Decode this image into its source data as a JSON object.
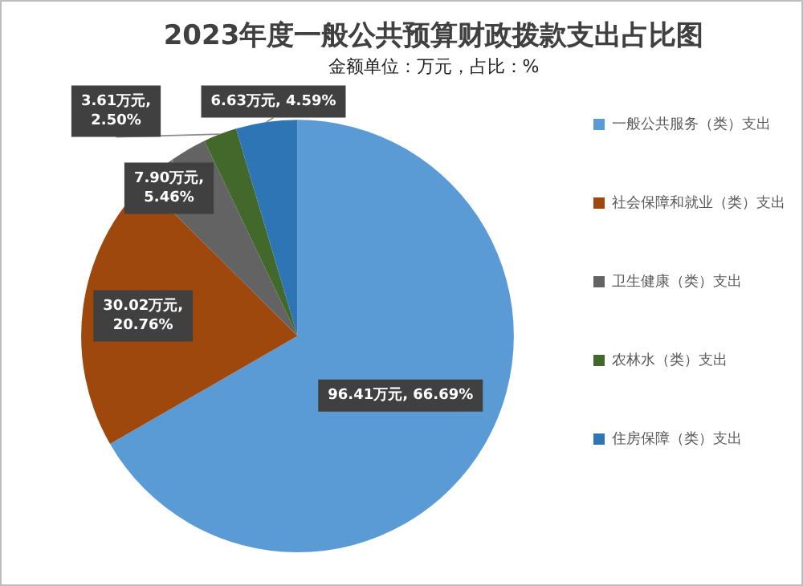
{
  "chart_data": {
    "type": "pie",
    "title": "2023年度一般公共预算财政拨款支出占比图",
    "subtitle": "金额单位：万元，占比：%",
    "categories": [
      "一般公共服务（类）支出",
      "社会保障和就业（类）支出",
      "卫生健康（类）支出",
      "农林水（类）支出",
      "住房保障（类）支出"
    ],
    "values": [
      96.41,
      30.02,
      7.9,
      3.61,
      6.63
    ],
    "value_labels": [
      "96.41万元, 66.69%",
      "30.02万元, 20.76%",
      "7.90万元, 5.46%",
      "3.61万元, 2.50%",
      "6.63万元, 4.59%"
    ],
    "colors": [
      "#5b9bd5",
      "#9e480e",
      "#636363",
      "#43682b",
      "#2e75b6"
    ],
    "legend": "right"
  }
}
